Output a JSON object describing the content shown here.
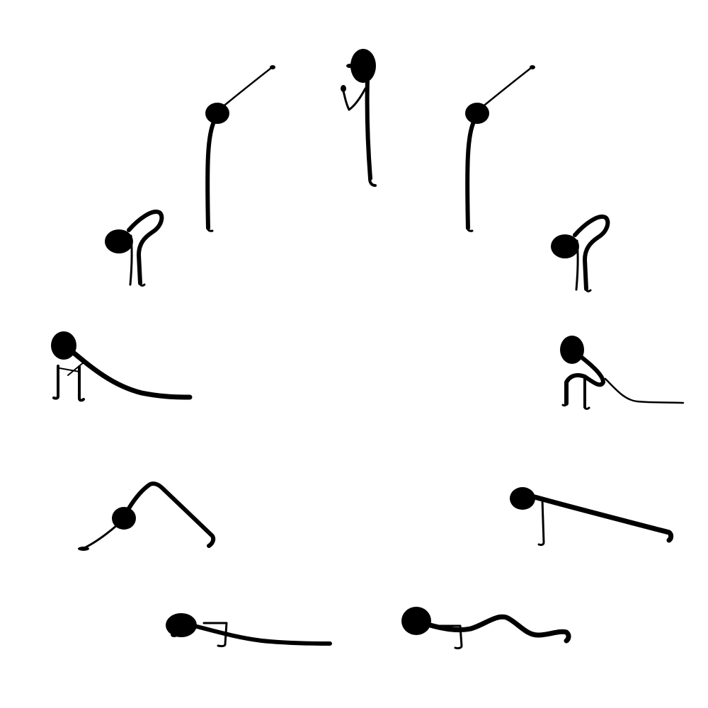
{
  "illustration": {
    "subject": "sun-salutation-sequence",
    "ink_color": "#000000",
    "background_color": "#ffffff",
    "poses": [
      {
        "id": "prayer",
        "icon": "prayer-pose-figure-icon"
      },
      {
        "id": "raised-arms-right",
        "icon": "raised-arms-pose-figure-icon"
      },
      {
        "id": "forward-bend-right",
        "icon": "forward-bend-pose-figure-icon"
      },
      {
        "id": "low-lunge-right",
        "icon": "low-lunge-pose-figure-icon"
      },
      {
        "id": "plank",
        "icon": "plank-pose-figure-icon"
      },
      {
        "id": "cobra",
        "icon": "cobra-pose-figure-icon"
      },
      {
        "id": "eight-limbed",
        "icon": "eight-limbed-pose-figure-icon"
      },
      {
        "id": "downward-dog",
        "icon": "downward-dog-pose-figure-icon"
      },
      {
        "id": "low-lunge-left",
        "icon": "low-lunge-pose-figure-icon"
      },
      {
        "id": "forward-bend-left",
        "icon": "forward-bend-pose-figure-icon"
      },
      {
        "id": "raised-arms-left",
        "icon": "raised-arms-pose-figure-icon"
      }
    ]
  }
}
